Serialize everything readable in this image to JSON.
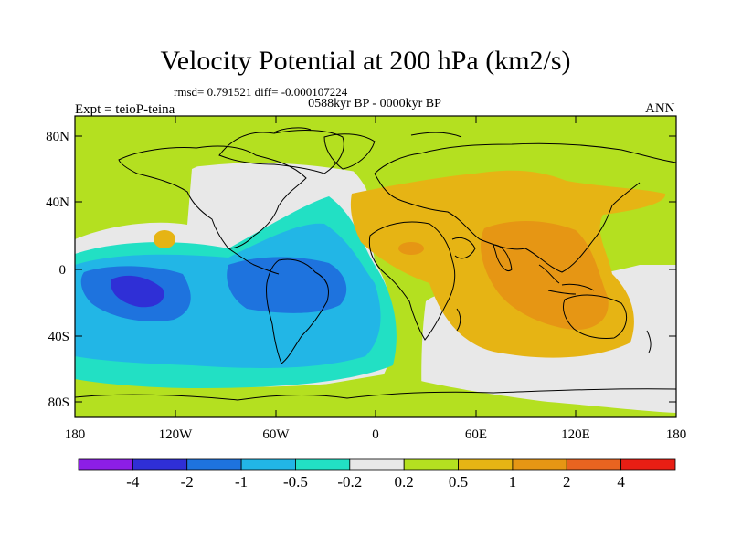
{
  "map": {
    "title": "Velocity Potential at 200 hPa (km2/s)",
    "stats": "rmsd= 0.791521 diff= -0.000107224",
    "period": "0588kyr BP - 0000kyr BP",
    "experiment": "Expt = teioP-teina",
    "season": "ANN",
    "lat_ticks": [
      "80N",
      "40N",
      "0",
      "40S",
      "80S"
    ],
    "lon_ticks": [
      "180",
      "120W",
      "60W",
      "0",
      "60E",
      "120E",
      "180"
    ]
  },
  "colorbar": {
    "labels": [
      "-4",
      "-2",
      "-1",
      "-0.5",
      "-0.2",
      "0.2",
      "0.5",
      "1",
      "2",
      "4"
    ],
    "colors": [
      "#8c1ee6",
      "#2f2fd6",
      "#1e73de",
      "#22b6e6",
      "#22e0c4",
      "#e8e8e8",
      "#b4e020",
      "#e6b414",
      "#e69614",
      "#e86420",
      "#e81e14"
    ]
  }
}
